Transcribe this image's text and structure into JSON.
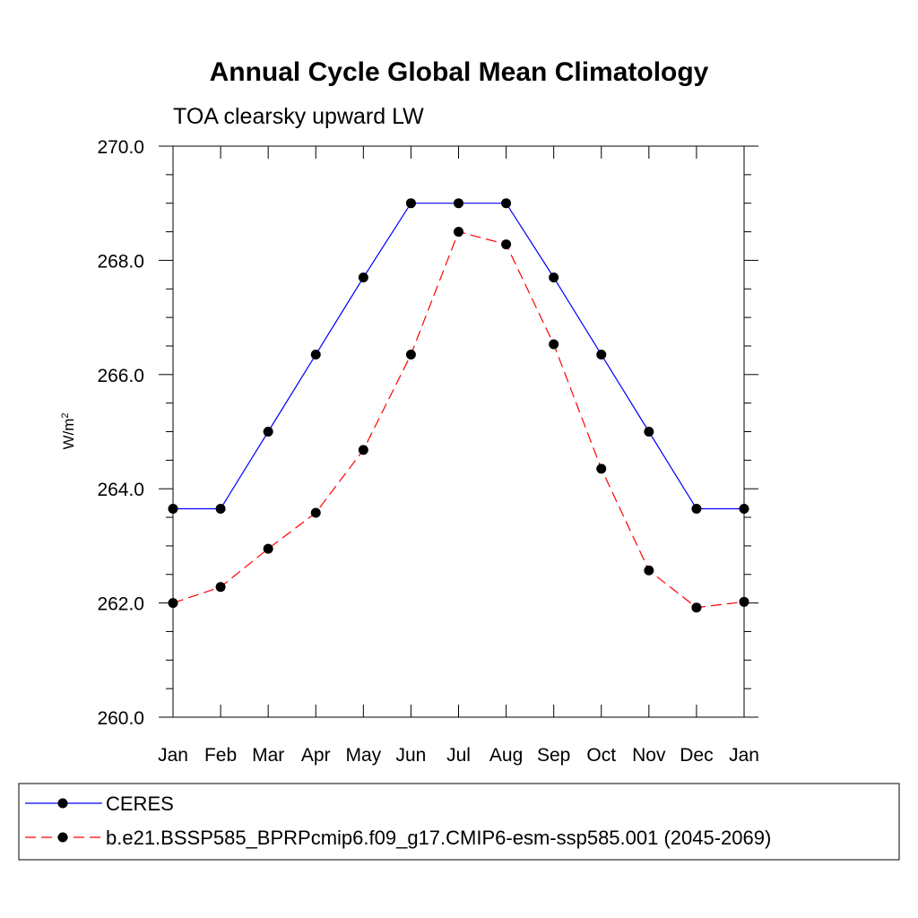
{
  "chart_data": {
    "type": "line",
    "title": "Annual Cycle Global Mean Climatology",
    "subtitle": "TOA clearsky upward LW",
    "xlabel": "",
    "ylabel": "W/m",
    "ylabel_superscript": "2",
    "categories": [
      "Jan",
      "Feb",
      "Mar",
      "Apr",
      "May",
      "Jun",
      "Jul",
      "Aug",
      "Sep",
      "Oct",
      "Nov",
      "Dec",
      "Jan"
    ],
    "ylim": [
      260.0,
      270.0
    ],
    "yticks": [
      260.0,
      262.0,
      264.0,
      266.0,
      268.0,
      270.0
    ],
    "ytick_labels": [
      "260.0",
      "262.0",
      "264.0",
      "266.0",
      "268.0",
      "270.0"
    ],
    "grid": false,
    "legend_position": "bottom",
    "series": [
      {
        "name": "CERES",
        "color": "#0000ff",
        "dash": "solid",
        "values": [
          263.65,
          263.65,
          265.0,
          266.35,
          267.7,
          269.0,
          269.0,
          269.0,
          267.7,
          266.35,
          265.0,
          263.65,
          263.65
        ]
      },
      {
        "name": "b.e21.BSSP585_BPRPcmip6.f09_g17.CMIP6-esm-ssp585.001 (2045-2069)",
        "color": "#ff0000",
        "dash": "dashed",
        "values": [
          262.0,
          262.28,
          262.95,
          263.58,
          264.68,
          266.35,
          268.5,
          268.28,
          266.53,
          264.35,
          262.57,
          261.92,
          262.02
        ]
      }
    ]
  }
}
